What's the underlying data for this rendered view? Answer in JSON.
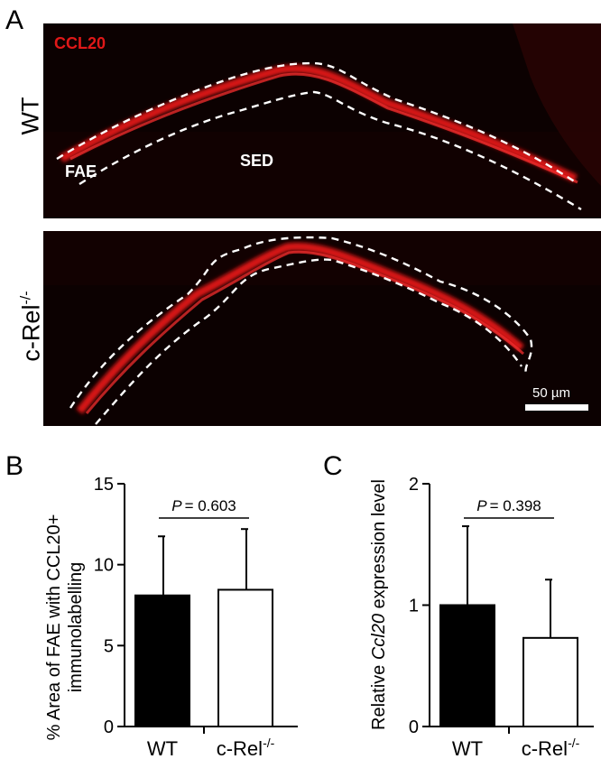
{
  "panels": {
    "a": "A",
    "b": "B",
    "c": "C"
  },
  "micrograph": {
    "stain_label": "CCL20",
    "row_wt": "WT",
    "row_ko": "c-Rel",
    "row_ko_sup": "-/-",
    "region_fae": "FAE",
    "region_sed": "SED",
    "scale_bar": "50 µm",
    "stain_color": "#e01818"
  },
  "chart_data": [
    {
      "type": "bar",
      "categories": [
        "WT",
        "c-Rel-/-"
      ],
      "category_labels": [
        "WT",
        "c-Rel"
      ],
      "category_sups": [
        "",
        "-/-"
      ],
      "values": [
        8.1,
        8.45
      ],
      "errors": [
        3.65,
        3.75
      ],
      "fills": [
        "#000000",
        "#ffffff"
      ],
      "ylabel_line1": "% Area of FAE with CCL20+",
      "ylabel_line2": "immunolabelling",
      "ylim": [
        0,
        15
      ],
      "yticks": [
        0,
        5,
        10,
        15
      ],
      "annotation_p": "P",
      "annotation_value": "= 0.603"
    },
    {
      "type": "bar",
      "categories": [
        "WT",
        "c-Rel-/-"
      ],
      "category_labels": [
        "WT",
        "c-Rel"
      ],
      "category_sups": [
        "",
        "-/-"
      ],
      "values": [
        1.0,
        0.73
      ],
      "errors": [
        0.65,
        0.48
      ],
      "fills": [
        "#000000",
        "#ffffff"
      ],
      "ylabel_pre": "Relative ",
      "ylabel_gene": "Ccl20",
      "ylabel_post": " expression level",
      "ylim": [
        0,
        2
      ],
      "yticks": [
        0,
        1,
        2
      ],
      "annotation_p": "P",
      "annotation_value": "= 0.398"
    }
  ]
}
